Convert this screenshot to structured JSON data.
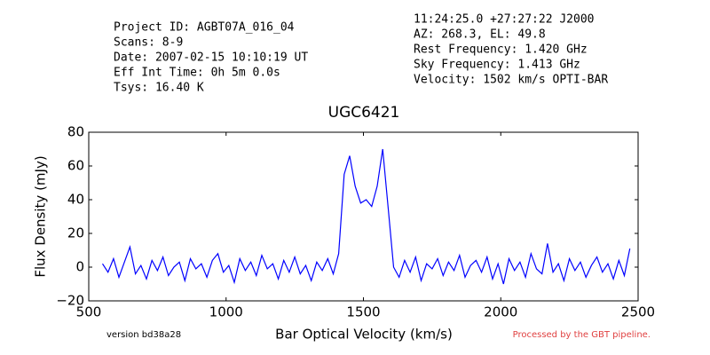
{
  "chart_data": {
    "type": "line",
    "title": "UGC6421",
    "x_label": "Bar Optical Velocity (km/s)",
    "y_label": "Flux Density (mJy)",
    "info_left": [
      "Project ID: AGBT07A_016_04",
      "Scans: 8-9",
      "Date: 2007-02-15 10:10:19 UT",
      "Eff Int Time: 0h 5m 0.0s",
      "Tsys: 16.40 K"
    ],
    "info_right": [
      "11:24:25.0 +27:27:22 J2000",
      "AZ: 268.3, EL: 49.8",
      "Rest Frequency:   1.420 GHz",
      "Sky Frequency:    1.413 GHz",
      "Velocity: 1502 km/s OPTI-BAR"
    ],
    "version_note": "version bd38a28",
    "pipeline_note": "Processed by the GBT pipeline.",
    "color": "#0000ff",
    "xlim": [
      500,
      2500
    ],
    "ylim": [
      -20,
      80
    ],
    "xticks": [
      500,
      1000,
      1500,
      2000,
      2500
    ],
    "yticks": [
      {
        "value": -20,
        "label": "−20"
      },
      0,
      20,
      40,
      60,
      80
    ],
    "x": [
      550,
      570,
      590,
      610,
      630,
      650,
      670,
      690,
      710,
      730,
      750,
      770,
      790,
      810,
      830,
      850,
      870,
      890,
      910,
      930,
      950,
      970,
      990,
      1010,
      1030,
      1050,
      1070,
      1090,
      1110,
      1130,
      1150,
      1170,
      1190,
      1210,
      1230,
      1250,
      1270,
      1290,
      1310,
      1330,
      1350,
      1370,
      1390,
      1410,
      1430,
      1450,
      1470,
      1490,
      1510,
      1530,
      1550,
      1570,
      1590,
      1610,
      1630,
      1650,
      1670,
      1690,
      1710,
      1730,
      1750,
      1770,
      1790,
      1810,
      1830,
      1850,
      1870,
      1890,
      1910,
      1930,
      1950,
      1970,
      1990,
      2010,
      2030,
      2050,
      2070,
      2090,
      2110,
      2130,
      2150,
      2170,
      2190,
      2210,
      2230,
      2250,
      2270,
      2290,
      2310,
      2330,
      2350,
      2370,
      2390,
      2410,
      2430,
      2450,
      2470
    ],
    "values": [
      2,
      -3,
      5,
      -6,
      3,
      12,
      -4,
      1,
      -7,
      4,
      -2,
      6,
      -5,
      0,
      3,
      -8,
      5,
      -1,
      2,
      -6,
      4,
      8,
      -3,
      1,
      -9,
      5,
      -2,
      3,
      -5,
      7,
      -1,
      2,
      -7,
      4,
      -3,
      6,
      -4,
      1,
      -8,
      3,
      -2,
      5,
      -4,
      8,
      55,
      66,
      48,
      38,
      40,
      36,
      48,
      70,
      35,
      0,
      -6,
      4,
      -3,
      6,
      -8,
      2,
      -1,
      5,
      -5,
      3,
      -2,
      7,
      -6,
      1,
      4,
      -3,
      6,
      -7,
      2,
      -10,
      5,
      -2,
      3,
      -6,
      8,
      -1,
      -4,
      14,
      -3,
      2,
      -8,
      5,
      -2,
      3,
      -6,
      1,
      6,
      -3,
      2,
      -7,
      4,
      -5,
      11
    ]
  }
}
